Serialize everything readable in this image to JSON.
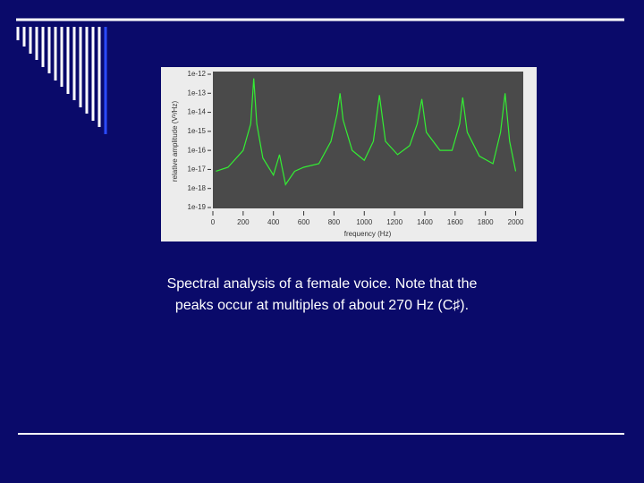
{
  "chart_data": {
    "type": "line",
    "y_label": "relative amplitude (V²/Hz)",
    "x_label": "frequency (Hz)",
    "x": [
      20,
      100,
      200,
      250,
      270,
      290,
      330,
      400,
      440,
      480,
      540,
      600,
      700,
      780,
      820,
      840,
      860,
      920,
      1000,
      1060,
      1100,
      1140,
      1220,
      1300,
      1350,
      1380,
      1410,
      1500,
      1580,
      1630,
      1650,
      1680,
      1760,
      1850,
      1900,
      1930,
      1960,
      2000
    ],
    "series": [
      {
        "color": "#33ee33",
        "values": [
          8e-18,
          1.3e-17,
          1e-16,
          2.5e-15,
          6e-13,
          2.5e-15,
          4e-17,
          5e-18,
          6e-17,
          1.6e-18,
          8e-18,
          1.3e-17,
          2e-17,
          3e-16,
          8e-15,
          1e-13,
          4e-15,
          1e-16,
          3e-17,
          3e-16,
          8e-14,
          3e-16,
          6e-17,
          1.8e-16,
          2.5e-15,
          5e-14,
          9e-16,
          1e-16,
          1e-16,
          2.5e-15,
          6e-14,
          9e-16,
          5e-17,
          2e-17,
          9e-16,
          1e-13,
          3e-16,
          8e-18
        ]
      }
    ],
    "xlim": [
      0,
      2050
    ],
    "xticks": [
      0,
      200,
      400,
      600,
      800,
      1000,
      1200,
      1400,
      1600,
      1800,
      2000
    ],
    "ylim": [
      1e-19,
      1e-12
    ],
    "yticks": [
      1e-19,
      1e-18,
      1e-17,
      1e-16,
      1e-15,
      1e-14,
      1e-13,
      1e-12
    ],
    "y_scale": "log"
  },
  "slide": {
    "caption": [
      "Spectral analysis of a female voice. Note that the",
      "peaks occur at multiples of about 270 Hz (C♯)."
    ]
  }
}
